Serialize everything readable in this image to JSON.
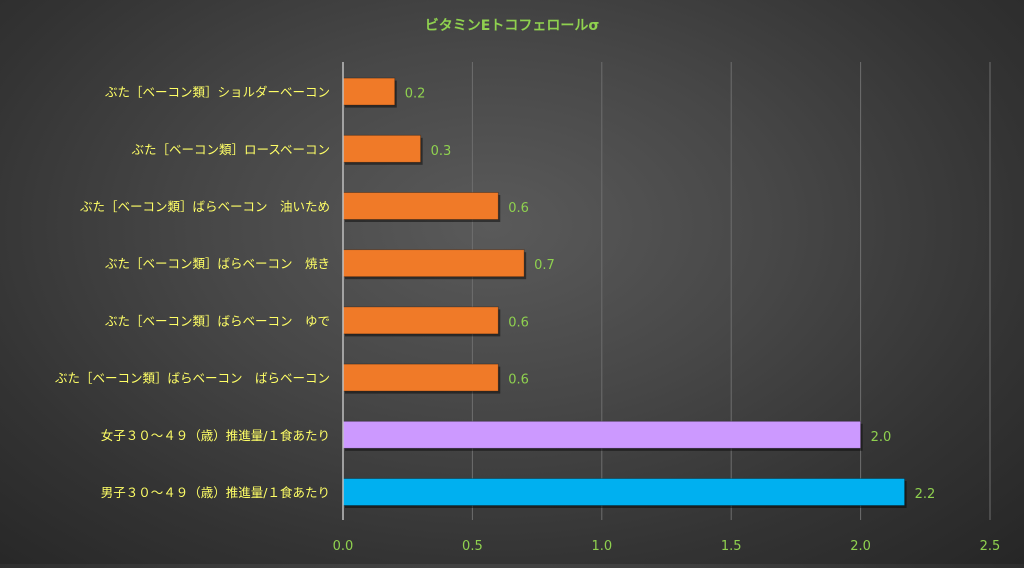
{
  "chart_data": {
    "type": "bar",
    "orientation": "horizontal",
    "title": "ビタミンEトコフェロールσ",
    "xlabel": "",
    "ylabel": "",
    "xlim": [
      0,
      2.5
    ],
    "ticks": [
      "0.0",
      "0.5",
      "1.0",
      "1.5",
      "2.0",
      "2.5"
    ],
    "tick_values": [
      0,
      0.5,
      1.0,
      1.5,
      2.0,
      2.5
    ],
    "grid": "vertical",
    "legend": "none",
    "categories": [
      "ぶた［ベーコン類］ショルダーベーコン",
      "ぶた［ベーコン類］ロースベーコン",
      "ぶた［ベーコン類］ばらベーコン　油いため",
      "ぶた［ベーコン類］ばらベーコン　焼き",
      "ぶた［ベーコン類］ばらベーコン　ゆで",
      "ぶた［ベーコン類］ばらベーコン　ばらベーコン",
      "女子３０～４９（歳）推進量/１食あたり",
      "男子３０～４９（歳）推進量/１食あたり"
    ],
    "values": [
      0.2,
      0.3,
      0.6,
      0.7,
      0.6,
      0.6,
      2.0,
      2.17
    ],
    "value_labels": [
      "0.2",
      "0.3",
      "0.6",
      "0.7",
      "0.6",
      "0.6",
      "2.0",
      "2.2"
    ],
    "bar_colors": [
      "#f07a28",
      "#f07a28",
      "#f07a28",
      "#f07a28",
      "#f07a28",
      "#f07a28",
      "#cc99ff",
      "#00b0f0"
    ],
    "colors": {
      "title": "#8fd14f",
      "category_labels": "#ffff66",
      "value_labels": "#8fd14f",
      "tick_labels": "#8fd14f",
      "gridline": "#6e6e6e",
      "axis": "#bfbfbf"
    }
  }
}
